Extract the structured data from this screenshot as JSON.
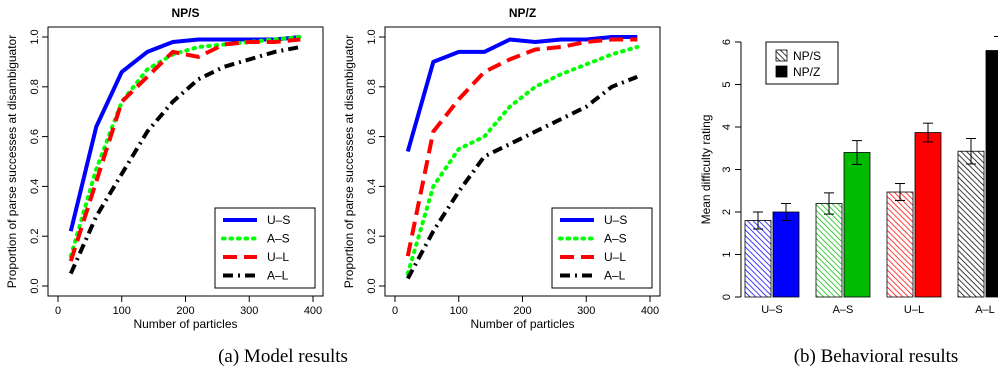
{
  "captions": {
    "a": "(a) Model results",
    "b": "(b) Behavioral results"
  },
  "chart_data": [
    {
      "type": "line",
      "title": "NP/S",
      "xlabel": "Number of particles",
      "ylabel": "Proportion of parse successes at disambiguator",
      "xlim": [
        0,
        400
      ],
      "ylim": [
        0,
        1
      ],
      "xticks": [
        "0",
        "100",
        "200",
        "300",
        "400"
      ],
      "yticks": [
        "0.0",
        "0.2",
        "0.4",
        "0.6",
        "0.8",
        "1.0"
      ],
      "grid": false,
      "legend": "bottom-right",
      "x": [
        20,
        60,
        100,
        140,
        180,
        220,
        260,
        300,
        340,
        380
      ],
      "series": [
        {
          "name": "U–S",
          "style": "solid",
          "color": "#0000ff",
          "values": [
            0.22,
            0.64,
            0.86,
            0.94,
            0.98,
            0.99,
            0.99,
            0.99,
            0.99,
            1.0
          ]
        },
        {
          "name": "A–S",
          "style": "dotted",
          "color": "#00ff00",
          "values": [
            0.12,
            0.47,
            0.74,
            0.87,
            0.93,
            0.96,
            0.97,
            0.98,
            0.99,
            1.0
          ]
        },
        {
          "name": "U–L",
          "style": "dashed",
          "color": "#ff0000",
          "values": [
            0.1,
            0.42,
            0.74,
            0.84,
            0.94,
            0.92,
            0.97,
            0.98,
            0.98,
            0.99
          ]
        },
        {
          "name": "A–L",
          "style": "dashdot",
          "color": "#000000",
          "values": [
            0.05,
            0.28,
            0.45,
            0.62,
            0.74,
            0.83,
            0.88,
            0.91,
            0.94,
            0.96
          ]
        }
      ]
    },
    {
      "type": "line",
      "title": "NP/Z",
      "xlabel": "Number of particles",
      "ylabel": "Proportion of parse successes at disambiguator",
      "xlim": [
        0,
        400
      ],
      "ylim": [
        0,
        1
      ],
      "xticks": [
        "0",
        "100",
        "200",
        "300",
        "400"
      ],
      "yticks": [
        "0.0",
        "0.2",
        "0.4",
        "0.6",
        "0.8",
        "1.0"
      ],
      "grid": false,
      "legend": "bottom-right",
      "x": [
        20,
        60,
        100,
        140,
        180,
        220,
        260,
        300,
        340,
        380
      ],
      "series": [
        {
          "name": "U–S",
          "style": "solid",
          "color": "#0000ff",
          "values": [
            0.54,
            0.9,
            0.94,
            0.94,
            0.99,
            0.98,
            0.99,
            0.99,
            1.0,
            1.0
          ]
        },
        {
          "name": "A–S",
          "style": "dotted",
          "color": "#00ff00",
          "values": [
            0.05,
            0.4,
            0.55,
            0.6,
            0.72,
            0.8,
            0.85,
            0.89,
            0.93,
            0.96
          ]
        },
        {
          "name": "U–L",
          "style": "dashed",
          "color": "#ff0000",
          "values": [
            0.12,
            0.62,
            0.75,
            0.86,
            0.91,
            0.95,
            0.96,
            0.98,
            0.99,
            0.99
          ]
        },
        {
          "name": "A–L",
          "style": "dashdot",
          "color": "#000000",
          "values": [
            0.03,
            0.22,
            0.38,
            0.52,
            0.57,
            0.62,
            0.67,
            0.72,
            0.8,
            0.84
          ]
        }
      ]
    },
    {
      "type": "bar",
      "title": "",
      "xlabel": "",
      "ylabel": "Mean difficulty rating",
      "ylim": [
        0,
        6
      ],
      "yticks": [
        "0",
        "1",
        "2",
        "3",
        "4",
        "5",
        "6"
      ],
      "grid": false,
      "legend": "top-left",
      "categories": [
        "U–S",
        "A–S",
        "U–L",
        "A–L"
      ],
      "colors": [
        "#0000ff",
        "#00bb00",
        "#ff0000",
        "#000000"
      ],
      "series": [
        {
          "name": "NP/S",
          "pattern": "hatched",
          "values": [
            1.8,
            2.2,
            2.47,
            3.43
          ],
          "errors": [
            0.2,
            0.25,
            0.2,
            0.3
          ]
        },
        {
          "name": "NP/Z",
          "pattern": "solid",
          "values": [
            2.0,
            3.4,
            3.87,
            5.8
          ],
          "errors": [
            0.2,
            0.28,
            0.22,
            0.33
          ]
        }
      ]
    }
  ]
}
